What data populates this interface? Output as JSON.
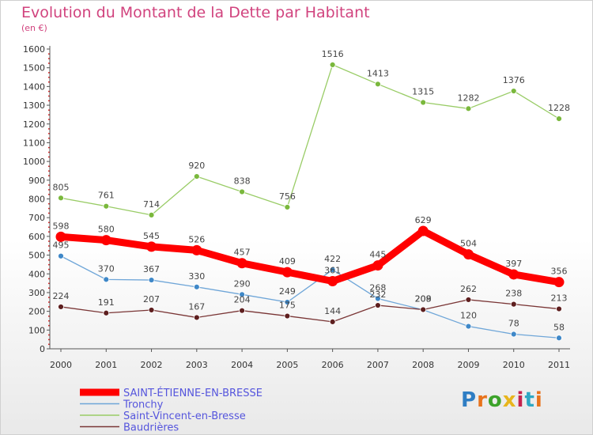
{
  "title": "Evolution du Montant de la Dette par Habitant",
  "subtitle": "(en €)",
  "logo": {
    "text": "Proxiti",
    "colors": [
      "#2f7ec4",
      "#e8731c",
      "#3ca32a",
      "#e8b51c",
      "#c4234e",
      "#2fa8c4",
      "#e8731c"
    ]
  },
  "chart_data": {
    "type": "line",
    "title": "Evolution du Montant de la Dette par Habitant",
    "ylabel": "(en €)",
    "ylim": [
      0,
      1600
    ],
    "yticks": [
      0,
      100,
      200,
      300,
      400,
      500,
      600,
      700,
      800,
      900,
      1000,
      1100,
      1200,
      1300,
      1400,
      1500,
      1600
    ],
    "x": [
      "2000",
      "2001",
      "2002",
      "2003",
      "2004",
      "2005",
      "2006",
      "2007",
      "2008",
      "2009",
      "2010",
      "2011"
    ],
    "grid": false,
    "legend": "bottom-left",
    "series": [
      {
        "name": "Saint-Vincent-en-Bresse",
        "color": "#99cc66",
        "marker": "#7ab83c",
        "values": [
          805,
          761,
          714,
          920,
          838,
          756,
          1516,
          1413,
          1315,
          1282,
          1376,
          1228
        ]
      },
      {
        "name": "Tronchy",
        "color": "#6fa6d8",
        "marker": "#3f88c8",
        "values": [
          495,
          370,
          367,
          330,
          290,
          249,
          422,
          268,
          208,
          120,
          78,
          58
        ]
      },
      {
        "name": "Baudrières",
        "color": "#7a3636",
        "marker": "#5e1f1f",
        "values": [
          224,
          191,
          207,
          167,
          204,
          175,
          144,
          232,
          209,
          262,
          238,
          213
        ]
      },
      {
        "name": "SAINT-ÉTIENNE-EN-BRESSE",
        "color": "#ff0000",
        "marker": "#ff0000",
        "values": [
          598,
          580,
          545,
          526,
          457,
          409,
          361,
          445,
          629,
          504,
          397,
          356
        ]
      }
    ],
    "legend_order": [
      "SAINT-ÉTIENNE-EN-BRESSE",
      "Tronchy",
      "Saint-Vincent-en-Bresse",
      "Baudrières"
    ]
  }
}
